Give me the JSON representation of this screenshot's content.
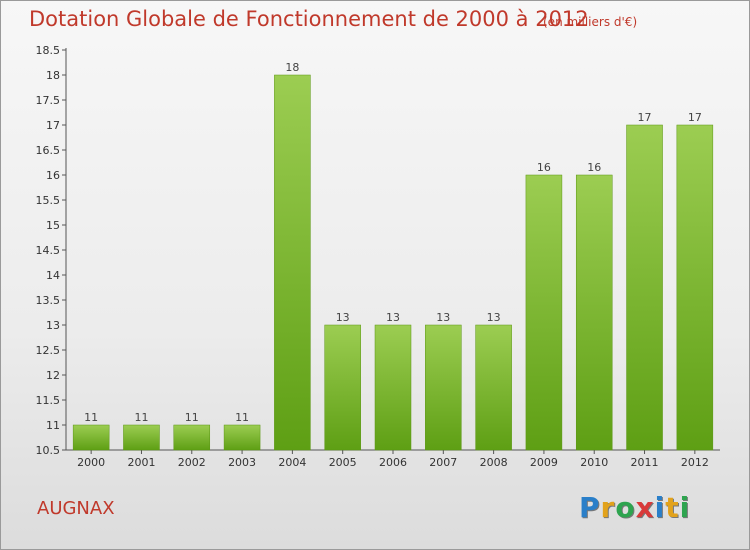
{
  "header": {
    "title": "Dotation Globale de Fonctionnement de 2000 à 2012",
    "unit": "(en milliers d'€)"
  },
  "footer": {
    "commune": "AUGNAX",
    "logo": "Proxiti",
    "logo_colors": [
      "#2a7fc9",
      "#e2a21b",
      "#2ea44f",
      "#d93a3a",
      "#2a7fc9",
      "#e2a21b",
      "#2ea44f"
    ]
  },
  "chart_data": {
    "type": "bar",
    "title": "Dotation Globale de Fonctionnement de 2000 à 2012",
    "subtitle": "(en milliers d'€)",
    "xlabel": "",
    "ylabel": "",
    "categories": [
      "2000",
      "2001",
      "2002",
      "2003",
      "2004",
      "2005",
      "2006",
      "2007",
      "2008",
      "2009",
      "2010",
      "2011",
      "2012"
    ],
    "values": [
      11,
      11,
      11,
      11,
      18,
      13,
      13,
      13,
      13,
      16,
      16,
      17,
      17
    ],
    "ylim": [
      10.5,
      18.5
    ],
    "yticks": [
      "10.5",
      "11",
      "11.5",
      "12",
      "12.5",
      "13",
      "13.5",
      "14",
      "14.5",
      "15",
      "15.5",
      "16",
      "16.5",
      "17",
      "17.5",
      "18",
      "18.5"
    ],
    "grid": false,
    "bar_color": "#7ab82e"
  }
}
